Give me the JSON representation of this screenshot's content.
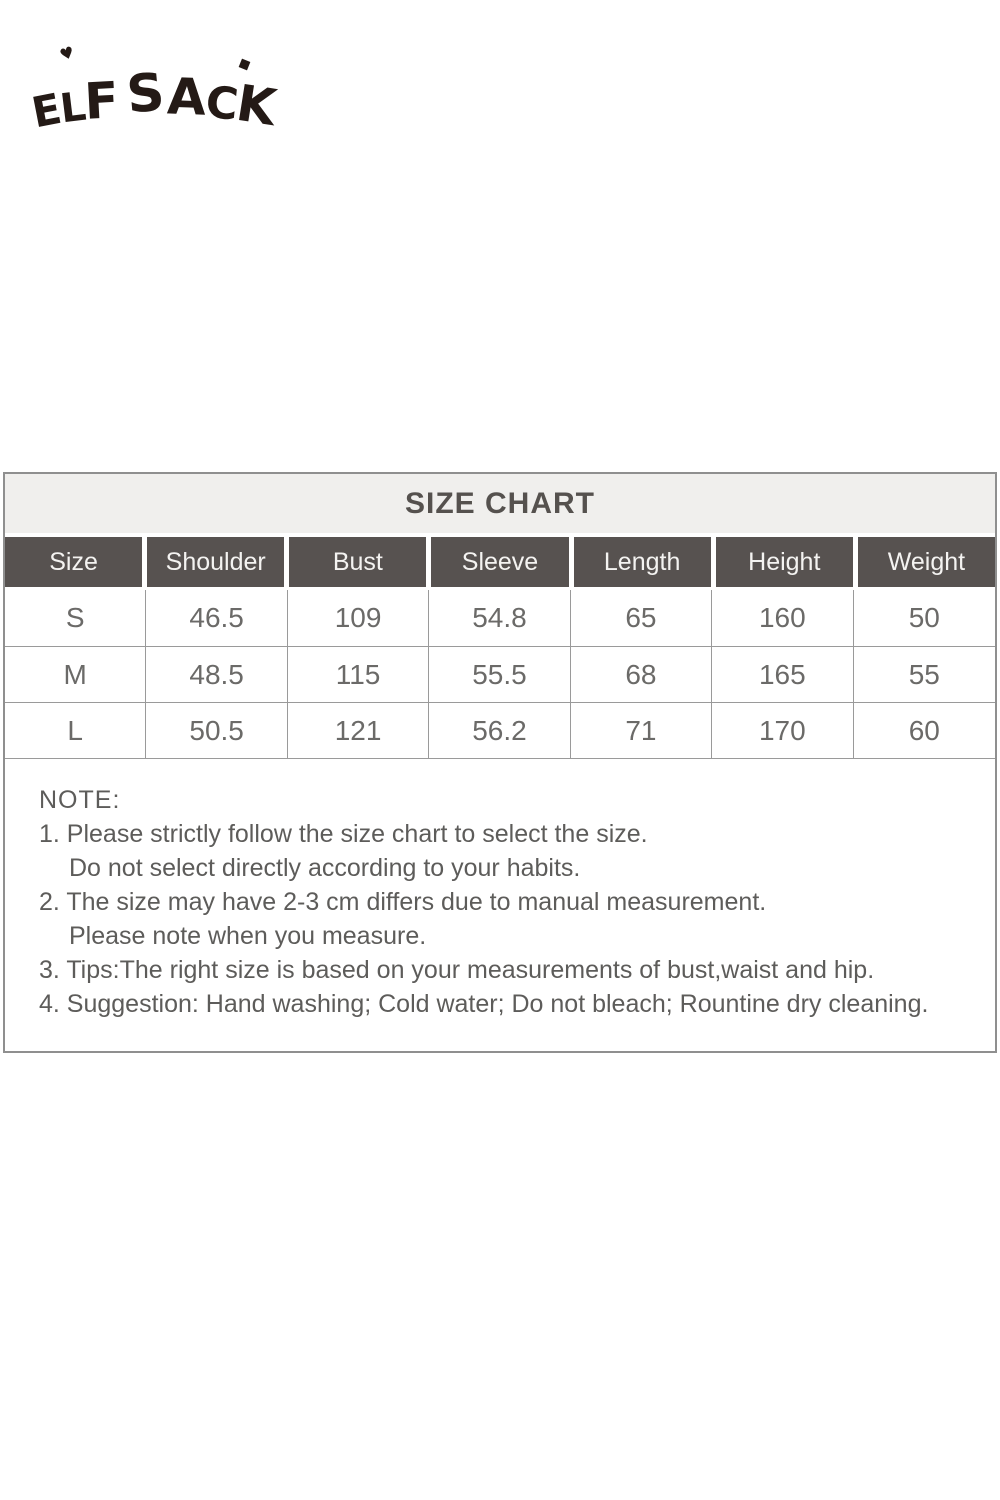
{
  "brand": {
    "logo_text": "ELF SACK",
    "logo_accent_mark": "♥"
  },
  "size_chart": {
    "title": "SIZE CHART",
    "columns": [
      "Size",
      "Shoulder",
      "Bust",
      "Sleeve",
      "Length",
      "Height",
      "Weight"
    ],
    "rows": [
      [
        "S",
        "46.5",
        "109",
        "54.8",
        "65",
        "160",
        "50"
      ],
      [
        "M",
        "48.5",
        "115",
        "55.5",
        "68",
        "165",
        "55"
      ],
      [
        "L",
        "50.5",
        "121",
        "56.2",
        "71",
        "170",
        "60"
      ]
    ]
  },
  "notes": {
    "heading": "NOTE:",
    "lines": [
      {
        "text": "1. Please strictly follow the size chart to select the size.",
        "indent": false
      },
      {
        "text": "Do not select directly according to your habits.",
        "indent": true
      },
      {
        "text": "2. The size may have 2-3 cm differs due to manual measurement.",
        "indent": false
      },
      {
        "text": "Please note when you measure.",
        "indent": true
      },
      {
        "text": "3. Tips:The right size is based on your measurements of bust,waist and hip.",
        "indent": false
      },
      {
        "text": "4. Suggestion: Hand washing; Cold water; Do not bleach; Rountine dry cleaning.",
        "indent": false
      }
    ]
  },
  "colors": {
    "logo_color": "#241a16",
    "title_bg": "#f0efed",
    "title_text": "#55514e",
    "header_bg": "#575250",
    "header_text": "#f4f3f1",
    "cell_text": "#6b6a68",
    "border_color": "#9a9a9a",
    "outer_border": "#8f8f8f",
    "note_text": "#5d5c5a"
  },
  "chart_data": {
    "type": "table",
    "title": "SIZE CHART",
    "columns": [
      "Size",
      "Shoulder",
      "Bust",
      "Sleeve",
      "Length",
      "Height",
      "Weight"
    ],
    "rows": [
      [
        "S",
        46.5,
        109,
        54.8,
        65,
        160,
        50
      ],
      [
        "M",
        48.5,
        115,
        55.5,
        68,
        165,
        55
      ],
      [
        "L",
        50.5,
        121,
        56.2,
        71,
        170,
        60
      ]
    ]
  }
}
